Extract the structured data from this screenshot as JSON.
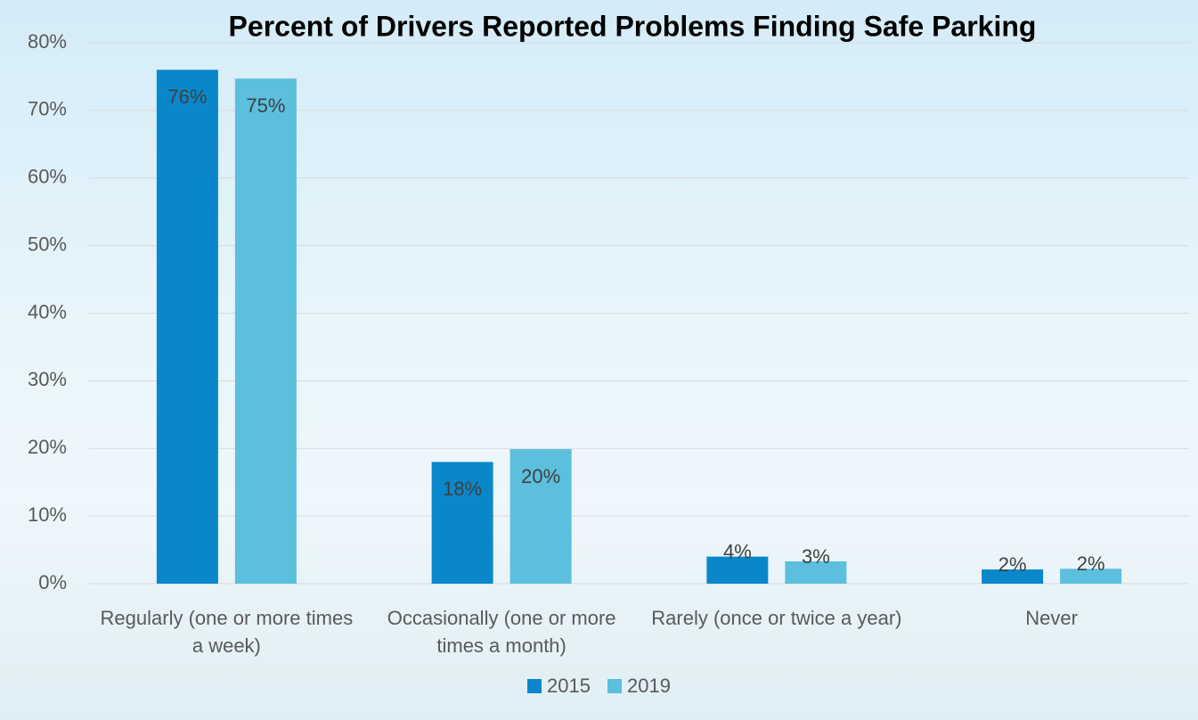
{
  "chart_data": {
    "type": "bar",
    "title": "Percent of Drivers Reported Problems Finding Safe Parking",
    "categories": [
      "Regularly (one or more times a week)",
      "Occasionally (one or more times a month)",
      "Rarely (once or twice a year)",
      "Never"
    ],
    "series": [
      {
        "name": "2015",
        "color": "#0a87cb",
        "values": [
          76.0,
          18.0,
          4.0,
          2.1
        ],
        "value_labels": [
          "76%",
          "18%",
          "4%",
          "2%"
        ]
      },
      {
        "name": "2019",
        "color": "#5bbfdd",
        "values": [
          74.7,
          19.9,
          3.3,
          2.2
        ],
        "value_labels": [
          "75%",
          "20%",
          "3%",
          "2%"
        ]
      }
    ],
    "ylim": [
      0,
      80
    ],
    "yticks": [
      {
        "value": 0,
        "label": "0%"
      },
      {
        "value": 10,
        "label": "10%"
      },
      {
        "value": 20,
        "label": "20%"
      },
      {
        "value": 30,
        "label": "30%"
      },
      {
        "value": 40,
        "label": "40%"
      },
      {
        "value": 50,
        "label": "50%"
      },
      {
        "value": 60,
        "label": "60%"
      },
      {
        "value": 70,
        "label": "70%"
      },
      {
        "value": 80,
        "label": "80%"
      }
    ],
    "grid": true,
    "legend": "bottom"
  }
}
